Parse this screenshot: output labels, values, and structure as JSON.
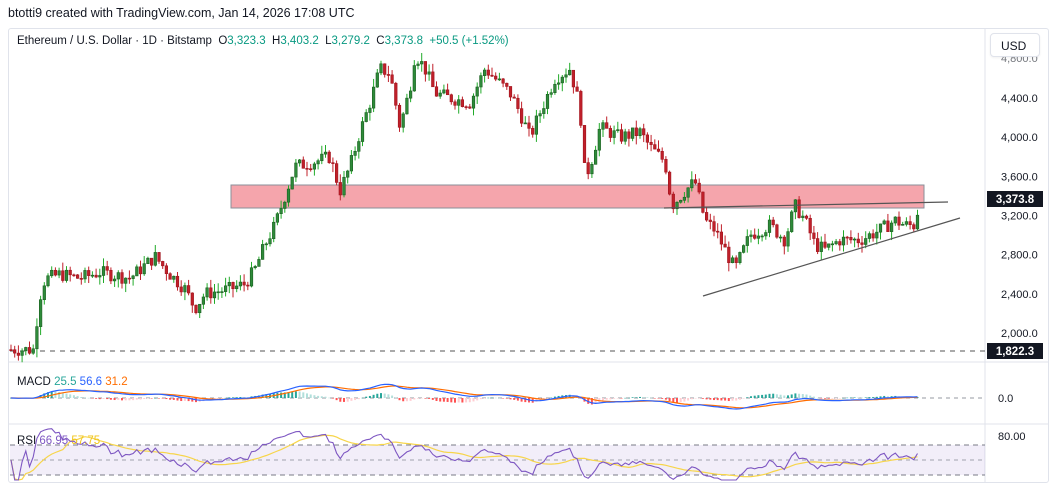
{
  "attribution": "btotti9 created with TradingView.com, Jan 14, 2026 17:08 UTC",
  "symbol": {
    "name": "Ethereum / U.S. Dollar · 1D · Bitstamp",
    "open_label": "O",
    "open": "3,323.3",
    "high_label": "H",
    "high": "3,403.2",
    "low_label": "L",
    "low": "3,279.2",
    "close_label": "C",
    "close": "3,373.8",
    "change": "+50.5 (+1.52%)"
  },
  "currency_button": "USD",
  "price_axis": {
    "ticks": [
      "4,800.0",
      "4,400.0",
      "4,000.0",
      "3,600.0",
      "3,200.0",
      "2,800.0",
      "2,400.0",
      "2,000.0"
    ],
    "last_price_tag": "3,373.8",
    "horizontal_line_tag": "1,822.3"
  },
  "macd": {
    "label": "MACD",
    "hist": "25.5",
    "macd": "56.6",
    "signal": "31.2",
    "axis_tick": "0.0"
  },
  "rsi": {
    "label": "RSI",
    "value": "66.95",
    "ma": "57.75",
    "axis_tick": "80.00"
  },
  "colors": {
    "up": "#22ab2a",
    "up_body": "#2e8b3a",
    "down": "#c0202a",
    "zone_fill": "#f5a5ac",
    "zone_border": "#8a8f99",
    "macd_line": "#2962ff",
    "signal_line": "#ff6d00",
    "rsi_line": "#7e57c2",
    "rsi_ma": "#f7d54a",
    "ohlc_text": "#089981"
  },
  "chart_data": {
    "type": "candlestick",
    "title": "Ethereum / U.S. Dollar · 1D · Bitstamp",
    "ylabel": "USD",
    "ylim": [
      1750,
      4950
    ],
    "y_ticks": [
      2000,
      2400,
      2800,
      3200,
      3600,
      4000,
      4400,
      4800
    ],
    "last": {
      "open": 3323.3,
      "high": 3403.2,
      "low": 3279.2,
      "close": 3373.8,
      "change": 50.5,
      "change_pct": 1.52
    },
    "annotations": [
      {
        "type": "zone",
        "label": "resistance/support box",
        "from_price": 3280,
        "to_price": 3530,
        "x_start_frac": 0.23,
        "x_end_frac": 0.95
      },
      {
        "type": "horizontal_dashed_line",
        "price": 1822.3
      },
      {
        "type": "trendline",
        "label": "rising support",
        "from": [
          0.72,
          2480
        ],
        "to": [
          0.985,
          3160
        ]
      },
      {
        "type": "trendline",
        "label": "flat resistance",
        "from": [
          0.68,
          3270
        ],
        "to": [
          0.97,
          3330
        ]
      }
    ],
    "approx_closes_by_phase": [
      {
        "phase": "base",
        "price": 1830
      },
      {
        "phase": "breakout",
        "price": 2550
      },
      {
        "phase": "range",
        "price": 2500
      },
      {
        "phase": "dip",
        "price": 2200
      },
      {
        "phase": "rally",
        "price": 3700
      },
      {
        "phase": "top",
        "price": 4800
      },
      {
        "phase": "second top",
        "price": 4700
      },
      {
        "phase": "decline",
        "price": 3300
      },
      {
        "phase": "low",
        "price": 2650
      },
      {
        "phase": "recovery",
        "price": 3374
      }
    ],
    "indicators": [
      {
        "name": "MACD",
        "values": {
          "histogram": 25.5,
          "macd": 56.6,
          "signal": 31.2
        },
        "zero_line": 0.0
      },
      {
        "name": "RSI",
        "values": {
          "rsi": 66.95,
          "rsi_ma": 57.75
        },
        "levels": [
          70,
          50,
          30
        ],
        "axis_tick": 80.0
      }
    ]
  }
}
